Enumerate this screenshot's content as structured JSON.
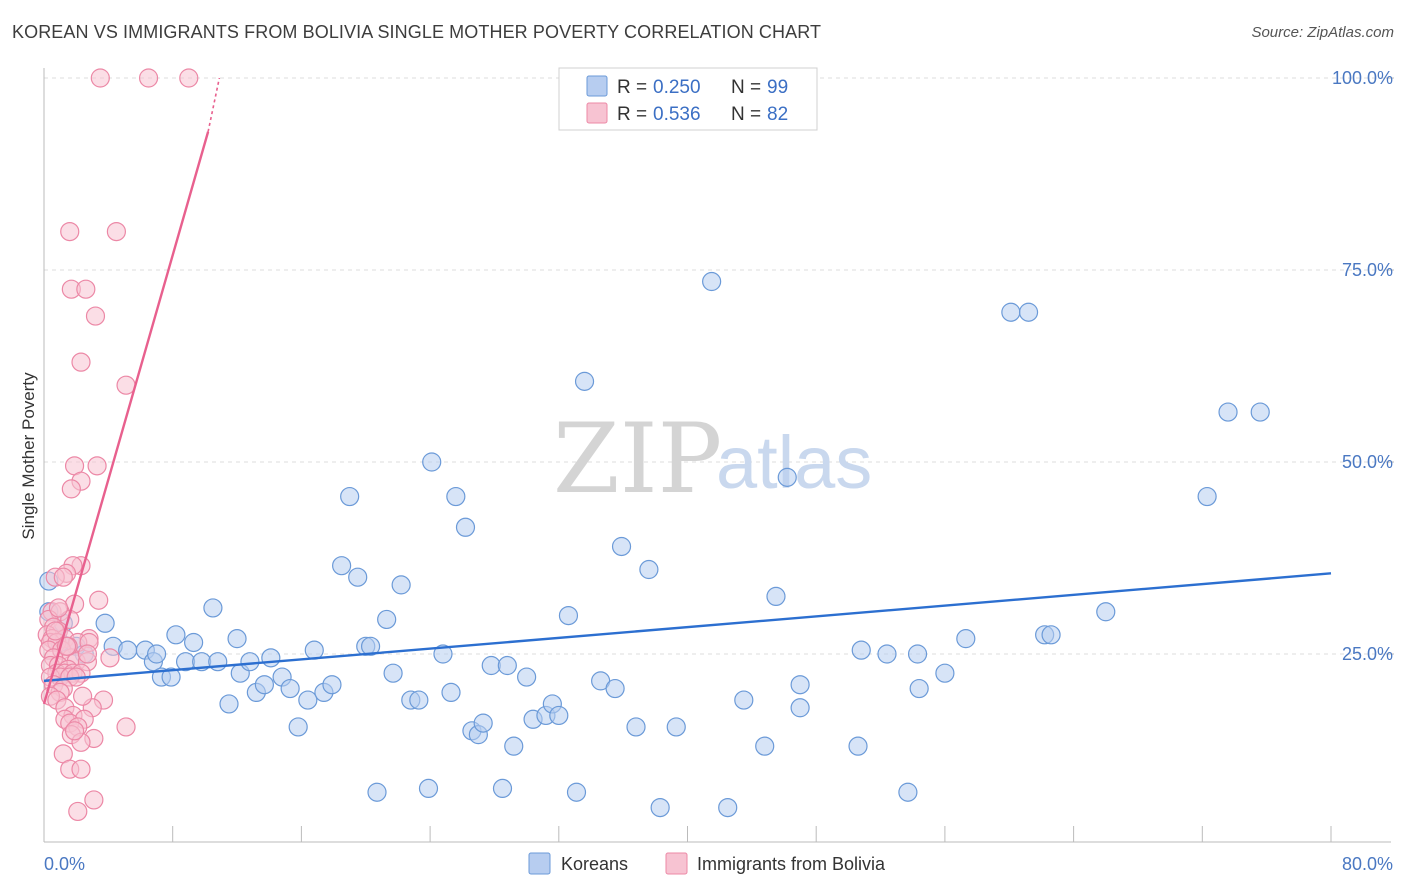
{
  "title": "KOREAN VS IMMIGRANTS FROM BOLIVIA SINGLE MOTHER POVERTY CORRELATION CHART",
  "source": "Source: ZipAtlas.com",
  "watermark": {
    "zip": "ZIP",
    "atlas": "atlas"
  },
  "colors": {
    "blue_fill": "#b7cdf0",
    "blue_stroke": "#6b9ad8",
    "blue_line": "#2c6fd0",
    "pink_fill": "#f7c3d2",
    "pink_stroke": "#ec88a6",
    "pink_line": "#e8608e",
    "grid": "#dcdcdc",
    "axis": "#bbbbbb"
  },
  "legend": {
    "rows": [
      {
        "r_label": "R =",
        "r_value": "0.250",
        "n_label": "N =",
        "n_value": "99"
      },
      {
        "r_label": "R =",
        "r_value": "0.536",
        "n_label": "N =",
        "n_value": "82"
      }
    ]
  },
  "chart_data": {
    "type": "scatter",
    "xlabel": "",
    "ylabel": "Single Mother Poverty",
    "xlim": [
      0,
      80
    ],
    "ylim": [
      0,
      100
    ],
    "x_tick_labels": [
      {
        "value": 0,
        "label": "0.0%"
      },
      {
        "value": 80,
        "label": "80.0%"
      }
    ],
    "y_tick_labels": [
      {
        "value": 100,
        "label": "100.0%"
      },
      {
        "value": 75,
        "label": "75.0%"
      },
      {
        "value": 50,
        "label": "50.0%"
      },
      {
        "value": 25,
        "label": "25.0%"
      }
    ],
    "x_minor_ticks": [
      8,
      16,
      24,
      32,
      40,
      48,
      56,
      64,
      72,
      80
    ],
    "series": [
      {
        "name": "Koreans",
        "color_key": "blue",
        "trend": {
          "x0": 0,
          "y0": 21.5,
          "x1": 80,
          "y1": 35.5
        },
        "points": [
          [
            0.3,
            34.5
          ],
          [
            0.3,
            30.5
          ],
          [
            1.2,
            29
          ],
          [
            1.0,
            26.5
          ],
          [
            2.0,
            26
          ],
          [
            2.5,
            25
          ],
          [
            3.8,
            29
          ],
          [
            4.3,
            26
          ],
          [
            5.2,
            25.5
          ],
          [
            6.3,
            25.5
          ],
          [
            6.8,
            24
          ],
          [
            7.0,
            25
          ],
          [
            7.3,
            22
          ],
          [
            7.9,
            22
          ],
          [
            8.2,
            27.5
          ],
          [
            8.8,
            24
          ],
          [
            9.3,
            26.5
          ],
          [
            9.8,
            24
          ],
          [
            10.5,
            31
          ],
          [
            10.8,
            24
          ],
          [
            11.5,
            18.5
          ],
          [
            12.0,
            27
          ],
          [
            12.2,
            22.5
          ],
          [
            12.8,
            24
          ],
          [
            13.2,
            20
          ],
          [
            13.7,
            21
          ],
          [
            14.1,
            24.5
          ],
          [
            14.8,
            22
          ],
          [
            15.3,
            20.5
          ],
          [
            15.8,
            15.5
          ],
          [
            16.4,
            19
          ],
          [
            16.8,
            25.5
          ],
          [
            17.4,
            20
          ],
          [
            17.9,
            21
          ],
          [
            18.5,
            36.5
          ],
          [
            19.0,
            45.5
          ],
          [
            19.5,
            35
          ],
          [
            20.0,
            26
          ],
          [
            20.3,
            26
          ],
          [
            20.7,
            7
          ],
          [
            21.3,
            29.5
          ],
          [
            21.7,
            22.5
          ],
          [
            22.2,
            34
          ],
          [
            22.8,
            19
          ],
          [
            23.3,
            19
          ],
          [
            23.9,
            7.5
          ],
          [
            24.1,
            50
          ],
          [
            24.8,
            25
          ],
          [
            25.3,
            20
          ],
          [
            25.6,
            45.5
          ],
          [
            26.2,
            41.5
          ],
          [
            26.6,
            15
          ],
          [
            27.0,
            14.5
          ],
          [
            27.3,
            16
          ],
          [
            27.8,
            23.5
          ],
          [
            28.5,
            7.5
          ],
          [
            28.8,
            23.5
          ],
          [
            29.2,
            13
          ],
          [
            30.0,
            22
          ],
          [
            30.4,
            16.5
          ],
          [
            31.2,
            17
          ],
          [
            31.6,
            18.5
          ],
          [
            32.0,
            17
          ],
          [
            32.6,
            30
          ],
          [
            33.1,
            7
          ],
          [
            33.6,
            60.5
          ],
          [
            34.6,
            21.5
          ],
          [
            35.5,
            20.5
          ],
          [
            35.9,
            39
          ],
          [
            36.8,
            15.5
          ],
          [
            37.6,
            36
          ],
          [
            38.3,
            5
          ],
          [
            39.3,
            15.5
          ],
          [
            41.5,
            73.5
          ],
          [
            42.5,
            5
          ],
          [
            43.5,
            19
          ],
          [
            44.8,
            13
          ],
          [
            45.5,
            32.5
          ],
          [
            46.2,
            48
          ],
          [
            47.0,
            18
          ],
          [
            47.0,
            21
          ],
          [
            50.6,
            13
          ],
          [
            50.8,
            25.5
          ],
          [
            52.4,
            25
          ],
          [
            53.7,
            7
          ],
          [
            54.3,
            25
          ],
          [
            54.4,
            20.5
          ],
          [
            56.0,
            22.5
          ],
          [
            57.3,
            27
          ],
          [
            60.1,
            69.5
          ],
          [
            61.2,
            69.5
          ],
          [
            62.2,
            27.5
          ],
          [
            62.6,
            27.5
          ],
          [
            66.0,
            30.5
          ],
          [
            72.3,
            45.5
          ],
          [
            73.6,
            56.5
          ],
          [
            75.6,
            56.5
          ]
        ]
      },
      {
        "name": "Immigrants from Bolivia",
        "color_key": "pink",
        "trend": {
          "x0": 0,
          "y0": 18.5,
          "x1": 10.2,
          "y1": 93,
          "dash_to": {
            "x": 10.9,
            "y": 100
          }
        },
        "points": [
          [
            3.5,
            100
          ],
          [
            6.5,
            100
          ],
          [
            9.0,
            100
          ],
          [
            1.6,
            80
          ],
          [
            4.5,
            80
          ],
          [
            1.7,
            72.5
          ],
          [
            2.6,
            72.5
          ],
          [
            3.2,
            69
          ],
          [
            2.3,
            63
          ],
          [
            5.1,
            60
          ],
          [
            1.9,
            49.5
          ],
          [
            3.3,
            49.5
          ],
          [
            2.3,
            47.5
          ],
          [
            1.7,
            46.5
          ],
          [
            2.3,
            36.5
          ],
          [
            1.8,
            36.5
          ],
          [
            1.4,
            35.5
          ],
          [
            0.7,
            35
          ],
          [
            1.2,
            35
          ],
          [
            3.4,
            32
          ],
          [
            1.9,
            31.5
          ],
          [
            0.5,
            30.5
          ],
          [
            1.0,
            30.5
          ],
          [
            0.3,
            29.5
          ],
          [
            1.6,
            29.5
          ],
          [
            0.6,
            28.5
          ],
          [
            0.9,
            28
          ],
          [
            0.2,
            27.5
          ],
          [
            0.5,
            27
          ],
          [
            1.3,
            27
          ],
          [
            2.8,
            27
          ],
          [
            0.4,
            26.5
          ],
          [
            0.8,
            26.5
          ],
          [
            2.1,
            26.5
          ],
          [
            2.8,
            26.5
          ],
          [
            0.3,
            25.5
          ],
          [
            1.1,
            25.5
          ],
          [
            0.6,
            24.5
          ],
          [
            1.7,
            24.5
          ],
          [
            2.0,
            24
          ],
          [
            2.7,
            24
          ],
          [
            0.4,
            23.5
          ],
          [
            0.9,
            23.5
          ],
          [
            1.5,
            23
          ],
          [
            0.8,
            22.5
          ],
          [
            1.3,
            22.5
          ],
          [
            1.8,
            22.5
          ],
          [
            2.3,
            22.5
          ],
          [
            0.4,
            22
          ],
          [
            1.0,
            22
          ],
          [
            1.6,
            22
          ],
          [
            2.0,
            22
          ],
          [
            0.6,
            21
          ],
          [
            1.2,
            20.5
          ],
          [
            1.0,
            20
          ],
          [
            0.4,
            19.5
          ],
          [
            3.7,
            19
          ],
          [
            0.8,
            19
          ],
          [
            1.3,
            18
          ],
          [
            3.0,
            18
          ],
          [
            1.8,
            17
          ],
          [
            2.5,
            16.5
          ],
          [
            1.3,
            16.5
          ],
          [
            1.6,
            16
          ],
          [
            2.1,
            15.5
          ],
          [
            5.1,
            15.5
          ],
          [
            1.7,
            14.5
          ],
          [
            3.1,
            14
          ],
          [
            2.3,
            13.5
          ],
          [
            1.2,
            12
          ],
          [
            1.6,
            10
          ],
          [
            2.3,
            10
          ],
          [
            3.1,
            6
          ],
          [
            2.1,
            4.5
          ],
          [
            1.9,
            15
          ],
          [
            0.7,
            28
          ],
          [
            2.4,
            19.5
          ],
          [
            1.5,
            26
          ],
          [
            2.7,
            25
          ],
          [
            4.1,
            24.5
          ],
          [
            0.9,
            31
          ],
          [
            1.4,
            26
          ]
        ]
      }
    ]
  },
  "bottom_legend": [
    {
      "label": "Koreans",
      "color_key": "blue"
    },
    {
      "label": "Immigrants from Bolivia",
      "color_key": "pink"
    }
  ]
}
